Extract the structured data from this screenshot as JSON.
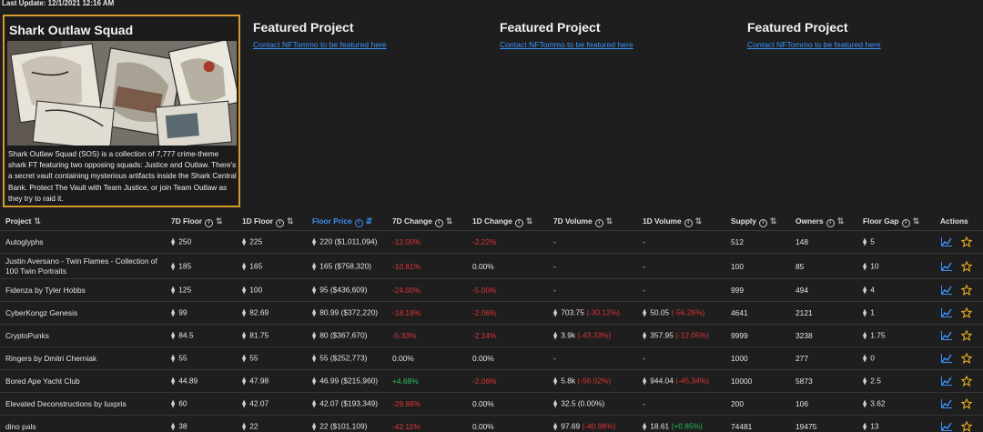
{
  "last_update": "Last Update: 12/1/2021 12:16 AM",
  "featured": {
    "title": "Shark Outlaw Squad",
    "description": "Shark Outlaw Squad (SOS) is a collection of 7,777 crime-theme shark FT featuring two opposing squads: Justice and Outlaw. There's a secret vault containing mysterious artifacts inside the Shark Central Bank. Protect The Vault with Team Justice, or join Team Outlaw as they try to raid it."
  },
  "slots": [
    {
      "title": "Featured Project",
      "link": "Contact NFTommo to be featured here"
    },
    {
      "title": "Featured Project",
      "link": "Contact NFTommo to be featured here"
    },
    {
      "title": "Featured Project",
      "link": "Contact NFTommo to be featured here"
    }
  ],
  "columns": {
    "project": "Project",
    "d7_floor": "7D Floor",
    "d1_floor": "1D Floor",
    "floor_price": "Floor Price",
    "d7_change": "7D Change",
    "d1_change": "1D Change",
    "d7_volume": "7D Volume",
    "d1_volume": "1D Volume",
    "supply": "Supply",
    "owners": "Owners",
    "floor_gap": "Floor Gap",
    "actions": "Actions"
  },
  "rows": [
    {
      "project": "Autoglyphs",
      "d7_floor": "250",
      "d1_floor": "225",
      "floor_price": "220 ($1,011,094)",
      "d7_change": "-12.00%",
      "d1_change": "-2.22%",
      "d7_volume": "-",
      "d7_volume_pct": "",
      "d1_volume": "-",
      "d1_volume_pct": "",
      "supply": "512",
      "owners": "148",
      "floor_gap": "5"
    },
    {
      "project": "Justin Aversano - Twin Flames - Collection of 100 Twin Portraits",
      "d7_floor": "185",
      "d1_floor": "165",
      "floor_price": "165 ($758,320)",
      "d7_change": "-10.81%",
      "d1_change": "0.00%",
      "d7_volume": "-",
      "d7_volume_pct": "",
      "d1_volume": "-",
      "d1_volume_pct": "",
      "supply": "100",
      "owners": "85",
      "floor_gap": "10"
    },
    {
      "project": "Fidenza by Tyler Hobbs",
      "d7_floor": "125",
      "d1_floor": "100",
      "floor_price": "95 ($436,609)",
      "d7_change": "-24.00%",
      "d1_change": "-5.00%",
      "d7_volume": "-",
      "d7_volume_pct": "",
      "d1_volume": "-",
      "d1_volume_pct": "",
      "supply": "999",
      "owners": "494",
      "floor_gap": "4"
    },
    {
      "project": "CyberKongz Genesis",
      "d7_floor": "99",
      "d1_floor": "82.69",
      "floor_price": "80.99 ($372,220)",
      "d7_change": "-18.19%",
      "d1_change": "-2.06%",
      "d7_volume": "703.75",
      "d7_volume_pct": "(-30.12%)",
      "d1_volume": "50.05",
      "d1_volume_pct": "(-56.26%)",
      "supply": "4641",
      "owners": "2121",
      "floor_gap": "1"
    },
    {
      "project": "CryptoPunks",
      "d7_floor": "84.5",
      "d1_floor": "81.75",
      "floor_price": "80 ($367,670)",
      "d7_change": "-5.33%",
      "d1_change": "-2.14%",
      "d7_volume": "3.9k",
      "d7_volume_pct": "(-43.33%)",
      "d1_volume": "357.95",
      "d1_volume_pct": "(-12.05%)",
      "supply": "9999",
      "owners": "3238",
      "floor_gap": "1.75"
    },
    {
      "project": "Ringers by Dmitri Cherniak",
      "d7_floor": "55",
      "d1_floor": "55",
      "floor_price": "55 ($252,773)",
      "d7_change": "0.00%",
      "d1_change": "0.00%",
      "d7_volume": "-",
      "d7_volume_pct": "",
      "d1_volume": "-",
      "d1_volume_pct": "",
      "supply": "1000",
      "owners": "277",
      "floor_gap": "0"
    },
    {
      "project": "Bored Ape Yacht Club",
      "d7_floor": "44.89",
      "d1_floor": "47.98",
      "floor_price": "46.99 ($215,960)",
      "d7_change": "+4.68%",
      "d1_change": "-2.06%",
      "d7_volume": "5.8k",
      "d7_volume_pct": "(-56.02%)",
      "d1_volume": "944.04",
      "d1_volume_pct": "(-45.34%)",
      "supply": "10000",
      "owners": "5873",
      "floor_gap": "2.5"
    },
    {
      "project": "Elevated Deconstructions by luxpris",
      "d7_floor": "60",
      "d1_floor": "42.07",
      "floor_price": "42.07 ($193,349)",
      "d7_change": "-29.88%",
      "d1_change": "0.00%",
      "d7_volume": "32.5",
      "d7_volume_pct": "(0.00%)",
      "d1_volume": "-",
      "d1_volume_pct": "",
      "supply": "200",
      "owners": "106",
      "floor_gap": "3.62"
    },
    {
      "project": "dino pals",
      "d7_floor": "38",
      "d1_floor": "22",
      "floor_price": "22 ($101,109)",
      "d7_change": "-42.11%",
      "d1_change": "0.00%",
      "d7_volume": "97.69",
      "d7_volume_pct": "(-40.98%)",
      "d1_volume": "18.61",
      "d1_volume_pct": "(+0.85%)",
      "supply": "74481",
      "owners": "19475",
      "floor_gap": "13"
    }
  ],
  "colors": {
    "negative": "#e03535",
    "positive": "#2ebd59",
    "link": "#3794ff",
    "card_border": "#d69b2b",
    "accent": "#3b91f0"
  },
  "icons": {
    "currency": "ethereum-icon",
    "chart": "chart-icon",
    "favorite": "star-icon",
    "info": "info-icon",
    "sort": "sort-icon"
  }
}
